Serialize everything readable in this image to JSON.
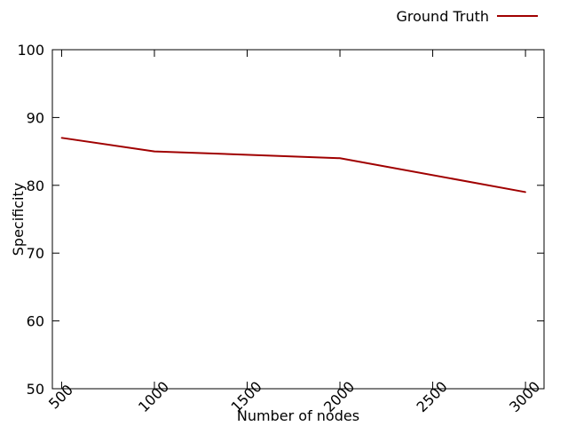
{
  "chart_data": {
    "type": "line",
    "title": "",
    "xlabel": "Number of nodes",
    "ylabel": "Specificity",
    "xlim": [
      450,
      3100
    ],
    "ylim": [
      50,
      100
    ],
    "grid": false,
    "legend_position": "top-right",
    "x_ticks": [
      500,
      1000,
      1500,
      2000,
      2500,
      3000
    ],
    "x_tick_labels": [
      "500",
      "1000",
      "1500",
      "2000",
      "2500",
      "3000"
    ],
    "y_ticks": [
      50,
      60,
      70,
      80,
      90,
      100
    ],
    "y_tick_labels": [
      "50",
      "60",
      "70",
      "80",
      "90",
      "100"
    ],
    "series": [
      {
        "name": "Ground Truth",
        "color": "#a00000",
        "x": [
          500,
          1000,
          2000,
          3000
        ],
        "y": [
          87,
          85,
          84,
          79
        ]
      }
    ]
  }
}
